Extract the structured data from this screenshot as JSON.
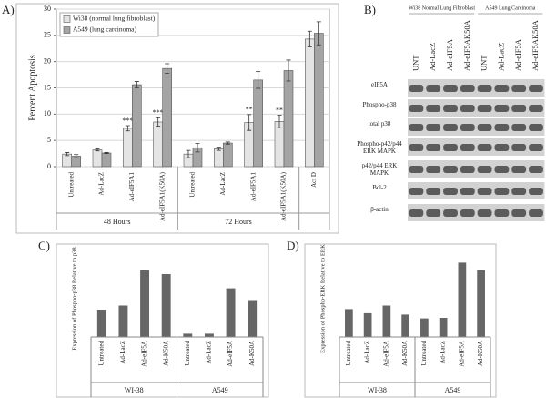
{
  "chart_data": [
    {
      "type": "bar",
      "panel_label": "A)",
      "ylabel": "Percent Apoptosis",
      "categories": [
        "Untreated",
        "Ad-LacZ",
        "Ad-eIF5A1",
        "Ad-eIF5A1(K50A)",
        "Untreated",
        "Ad-LacZ",
        "Ad-eIF5A1",
        "Ad-eIF5A1(K50A)",
        "Act D"
      ],
      "groups": [
        "48 Hours",
        "72 Hours"
      ],
      "series": [
        {
          "name": "Wi38 (normal lung fibroblast)",
          "color": "#e4e4e4",
          "values": [
            2.4,
            3.2,
            7.3,
            8.5,
            2.4,
            3.4,
            8.4,
            8.6,
            24.3
          ],
          "errors": [
            0.3,
            0.2,
            0.5,
            0.8,
            0.7,
            0.3,
            1.5,
            1.2,
            1.5
          ],
          "annotations": [
            null,
            null,
            "***",
            "***",
            null,
            null,
            "**",
            "**",
            null
          ]
        },
        {
          "name": "A549 (lung carcinoma)",
          "color": "#a4a4a4",
          "values": [
            2.0,
            2.6,
            15.6,
            18.7,
            3.6,
            4.5,
            16.5,
            18.3,
            25.4
          ],
          "errors": [
            0.3,
            0.1,
            0.6,
            0.9,
            0.8,
            0.2,
            1.6,
            2.0,
            2.2
          ]
        }
      ],
      "ylim": [
        0,
        30
      ],
      "yticks": [
        0,
        5,
        10,
        15,
        20,
        25,
        30
      ],
      "grid": true,
      "legend": "upper left"
    },
    {
      "type": "bar",
      "panel_label": "C)",
      "ylabel": "Expression of Phospho-p38 Relative to p38",
      "categories": [
        "Untreated",
        "Ad-LacZ",
        "Ad-eIF5A",
        "Ad-K50A",
        "Untreated",
        "Ad-LacZ",
        "Ad-eIF5A",
        "Ad-K50A"
      ],
      "groups": [
        "WI-38",
        "A549"
      ],
      "values": [
        1.0,
        1.15,
        2.45,
        2.3,
        0.12,
        0.12,
        1.78,
        1.35
      ],
      "color": "#666666"
    },
    {
      "type": "bar",
      "panel_label": "D)",
      "ylabel": "Expression of Phospho-ERK Relative to ERK",
      "categories": [
        "Untreated",
        "Ad-LacZ",
        "Ad-eIF5A",
        "Ad-K50A",
        "Untreated",
        "Ad-LacZ",
        "Ad-eIF5A",
        "Ad-K50A"
      ],
      "groups": [
        "WI-38",
        "A549"
      ],
      "values": [
        1.02,
        0.87,
        1.15,
        0.82,
        0.68,
        0.7,
        2.72,
        2.45
      ],
      "color": "#666666"
    }
  ],
  "blot": {
    "panel_label": "B)",
    "groups": [
      "Wi38 Normal Lung Fibroblast",
      "A549 Lung Carcinoma"
    ],
    "lanes": [
      "UNT",
      "Ad-LacZ",
      "Ad-eIF5A",
      "Ad-eIF5AK50A",
      "UNT",
      "Ad-LacZ",
      "Ad-eIF5A",
      "Ad-eIF5AK50A"
    ],
    "rows": [
      "eIF5A",
      "Phospho-p38",
      "total p38",
      "Phospho-p42/p44 ERK MAPK",
      "p42/p44 ERK MAPK",
      "Bcl-2",
      "β-actin"
    ]
  }
}
